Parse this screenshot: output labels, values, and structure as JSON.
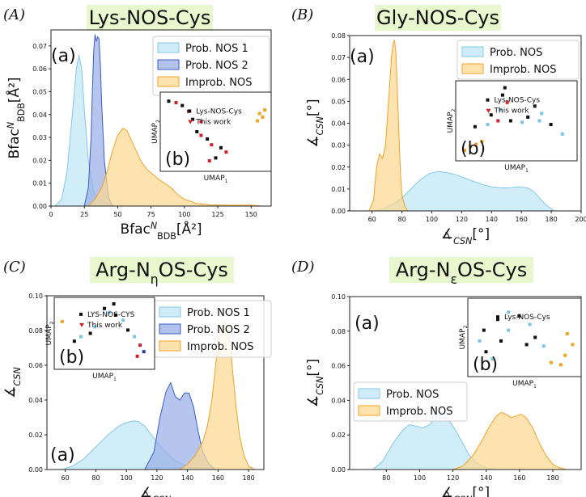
{
  "colors": {
    "prob1_fill": "#bfe6f5",
    "prob1_line": "#82c8e8",
    "prob2_fill": "#9aaee6",
    "prob2_line": "#3a5cc6",
    "improb_fill": "#fbd892",
    "improb_line": "#f0a22a",
    "title_bg": "#e9f7cf",
    "scatter_black": "#111111",
    "scatter_red": "#d4202a",
    "scatter_orange": "#f2a31f",
    "scatter_blue": "#7cc5e6",
    "scatter_navy": "#2a3a9a"
  },
  "panels": [
    {
      "label": "(A)",
      "title": "Lys-NOS-Cys",
      "sub": "(a)",
      "xlabel": "Bfac",
      "xlabel_sup": "N",
      "xlabel_sub": "BDB",
      "xlabel_unit": "[Å²]",
      "ylabel": "Bfac",
      "ylabel_sup": "N",
      "ylabel_sub": "BDB",
      "ylabel_unit": "[Å²]",
      "legend": [
        "Prob. NOS 1",
        "Prob. NOS 2",
        "Improb. NOS"
      ],
      "inset": {
        "sub": "(b)",
        "xlabel": "UMAP",
        "xsub": "1",
        "ylabel": "UMAP",
        "ysub": "2",
        "legend": [
          "Lys-NOS-Cys",
          "This work"
        ]
      }
    },
    {
      "label": "(B)",
      "title": "Gly-NOS-Cys",
      "sub": "(a)",
      "xlabel": "∡",
      "xlabel_sub": "CSN",
      "xlabel_unit": "[°]",
      "ylabel": "∡",
      "ylabel_sub": "CSN",
      "ylabel_unit": "[°]",
      "legend": [
        "Prob. NOS",
        "Improb. NOS"
      ],
      "inset": {
        "sub": "(b)",
        "xlabel": "UMAP",
        "xsub": "1",
        "ylabel": "UMAP",
        "ysub": "2",
        "legend": [
          "Lys-NOS-Cys",
          "This work"
        ]
      }
    },
    {
      "label": "(C)",
      "title": "Arg-N",
      "title_sub": "η",
      "title_rest": "OS-Cys",
      "sub": "(a)",
      "xlabel": "∡",
      "xlabel_sub": "CSN",
      "ylabel": "∡",
      "ylabel_sub": "CSN",
      "legend": [
        "Prob. NOS 1",
        "Prob. NOS 2",
        "Improb. NOS"
      ],
      "inset": {
        "sub": "(b)",
        "xlabel": "UMAP",
        "xsub": "1",
        "ylabel": "UMAP",
        "ysub": "2",
        "legend": [
          "LYS-NOS-CYS",
          "This work"
        ]
      }
    },
    {
      "label": "(D)",
      "title": "Arg-N",
      "title_sub": "ε",
      "title_rest": "OS-Cys",
      "sub": "(a)",
      "xlabel": "∡",
      "xlabel_sub": "CSN",
      "xlabel_unit": "[°]",
      "ylabel": "∡",
      "ylabel_sub": "CSN",
      "ylabel_unit": "[°]",
      "legend": [
        "Prob. NOS",
        "Improb. NOS"
      ],
      "inset": {
        "sub": "(b)",
        "xlabel": "UMAP",
        "xsub": "1",
        "ylabel": "UMAP",
        "ysub": "2",
        "legend": [
          "Lys-NOS-Cys"
        ]
      }
    }
  ],
  "chart_data": [
    {
      "type": "area",
      "panel": "A",
      "xlim": [
        0,
        165
      ],
      "ylim": [
        0,
        0.077
      ],
      "xticks": [
        0,
        25,
        50,
        75,
        100,
        125,
        150
      ],
      "yticks": [
        0.0,
        0.01,
        0.02,
        0.03,
        0.04,
        0.05,
        0.06,
        0.07
      ],
      "series": [
        {
          "name": "Prob. NOS 1",
          "x": [
            3,
            8,
            12,
            16,
            19,
            21,
            23,
            25,
            28,
            32,
            36,
            40,
            44,
            48
          ],
          "y": [
            0,
            0.003,
            0.015,
            0.04,
            0.06,
            0.066,
            0.06,
            0.042,
            0.02,
            0.006,
            0.003,
            0.002,
            0.001,
            0
          ]
        },
        {
          "name": "Prob. NOS 2",
          "x": [
            25,
            28,
            30,
            31,
            32,
            33,
            34,
            35,
            36,
            37,
            38,
            40,
            43,
            46
          ],
          "y": [
            0,
            0.008,
            0.03,
            0.05,
            0.068,
            0.075,
            0.072,
            0.074,
            0.073,
            0.062,
            0.045,
            0.02,
            0.004,
            0
          ]
        },
        {
          "name": "Improb. NOS",
          "x": [
            28,
            33,
            38,
            42,
            46,
            50,
            54,
            57,
            60,
            64,
            68,
            72,
            76,
            80,
            85,
            90,
            95,
            100,
            105,
            110,
            115,
            120,
            130,
            140,
            150,
            158
          ],
          "y": [
            0,
            0.003,
            0.008,
            0.015,
            0.024,
            0.031,
            0.034,
            0.033,
            0.029,
            0.024,
            0.019,
            0.016,
            0.014,
            0.012,
            0.01,
            0.008,
            0.005,
            0.003,
            0.002,
            0.001,
            0.0008,
            0.0005,
            0.0004,
            0.0004,
            0.0004,
            0
          ]
        }
      ]
    },
    {
      "type": "area",
      "panel": "B",
      "xlim": [
        45,
        200
      ],
      "ylim": [
        0,
        0.08
      ],
      "xticks": [
        60,
        80,
        100,
        120,
        140,
        160,
        180,
        200
      ],
      "yticks": [
        0.0,
        0.01,
        0.02,
        0.03,
        0.04,
        0.05,
        0.06,
        0.07,
        0.08
      ],
      "series": [
        {
          "name": "Prob. NOS",
          "x": [
            62,
            68,
            74,
            80,
            86,
            92,
            98,
            104,
            110,
            116,
            122,
            128,
            134,
            140,
            146,
            152,
            158,
            164,
            168,
            172,
            176,
            182
          ],
          "y": [
            0,
            0.001,
            0.003,
            0.006,
            0.01,
            0.014,
            0.017,
            0.018,
            0.0175,
            0.0165,
            0.015,
            0.0135,
            0.012,
            0.011,
            0.0105,
            0.0105,
            0.011,
            0.0105,
            0.009,
            0.006,
            0.003,
            0
          ]
        },
        {
          "name": "Improb. NOS",
          "x": [
            58,
            61,
            63,
            65,
            67,
            69,
            71,
            73,
            74,
            75,
            76,
            77,
            78,
            79,
            80,
            82,
            84
          ],
          "y": [
            0,
            0.005,
            0.02,
            0.026,
            0.024,
            0.03,
            0.05,
            0.07,
            0.076,
            0.078,
            0.072,
            0.055,
            0.035,
            0.018,
            0.007,
            0.002,
            0
          ]
        }
      ]
    },
    {
      "type": "area",
      "panel": "C",
      "xlim": [
        48,
        190
      ],
      "ylim": [
        0,
        0.1
      ],
      "xticks": [
        60,
        80,
        100,
        120,
        140,
        160,
        180
      ],
      "yticks": [
        0.0,
        0.02,
        0.04,
        0.06,
        0.08,
        0.1
      ],
      "series": [
        {
          "name": "Prob. NOS 1",
          "x": [
            58,
            65,
            72,
            80,
            88,
            95,
            100,
            105,
            108,
            112,
            118,
            125,
            132,
            140,
            150,
            158
          ],
          "y": [
            0,
            0.002,
            0.006,
            0.013,
            0.02,
            0.025,
            0.027,
            0.028,
            0.0275,
            0.025,
            0.018,
            0.011,
            0.005,
            0.002,
            0.0005,
            0
          ]
        },
        {
          "name": "Prob. NOS 2",
          "x": [
            112,
            118,
            122,
            126,
            129,
            132,
            135,
            138,
            141,
            144,
            147,
            150,
            154,
            158
          ],
          "y": [
            0,
            0.01,
            0.03,
            0.045,
            0.05,
            0.042,
            0.04,
            0.044,
            0.044,
            0.036,
            0.022,
            0.01,
            0.003,
            0
          ]
        },
        {
          "name": "Improb. NOS",
          "x": [
            135,
            140,
            145,
            150,
            153,
            156,
            159,
            162,
            164,
            166,
            168,
            170,
            172,
            174,
            177,
            180,
            184
          ],
          "y": [
            0,
            0.003,
            0.008,
            0.016,
            0.025,
            0.04,
            0.065,
            0.082,
            0.085,
            0.082,
            0.072,
            0.052,
            0.035,
            0.02,
            0.008,
            0.002,
            0
          ]
        }
      ]
    },
    {
      "type": "area",
      "panel": "D",
      "xlim": [
        58,
        197
      ],
      "ylim": [
        0,
        0.1
      ],
      "xticks": [
        80,
        100,
        120,
        140,
        160,
        180
      ],
      "yticks": [
        0.0,
        0.02,
        0.04,
        0.06,
        0.08,
        0.1
      ],
      "series": [
        {
          "name": "Prob. NOS",
          "x": [
            72,
            78,
            84,
            90,
            94,
            98,
            102,
            106,
            110,
            114,
            118,
            122,
            126,
            130,
            134,
            140,
            146
          ],
          "y": [
            0,
            0.005,
            0.015,
            0.023,
            0.026,
            0.025,
            0.024,
            0.026,
            0.031,
            0.0315,
            0.028,
            0.022,
            0.015,
            0.008,
            0.004,
            0.001,
            0
          ]
        },
        {
          "name": "Improb. NOS",
          "x": [
            120,
            126,
            132,
            137,
            142,
            146,
            149,
            152,
            155,
            158,
            161,
            164,
            168,
            172,
            176,
            180,
            184,
            188
          ],
          "y": [
            0,
            0.002,
            0.008,
            0.016,
            0.025,
            0.031,
            0.033,
            0.032,
            0.03,
            0.031,
            0.032,
            0.03,
            0.024,
            0.015,
            0.008,
            0.003,
            0.001,
            0
          ]
        }
      ]
    }
  ]
}
